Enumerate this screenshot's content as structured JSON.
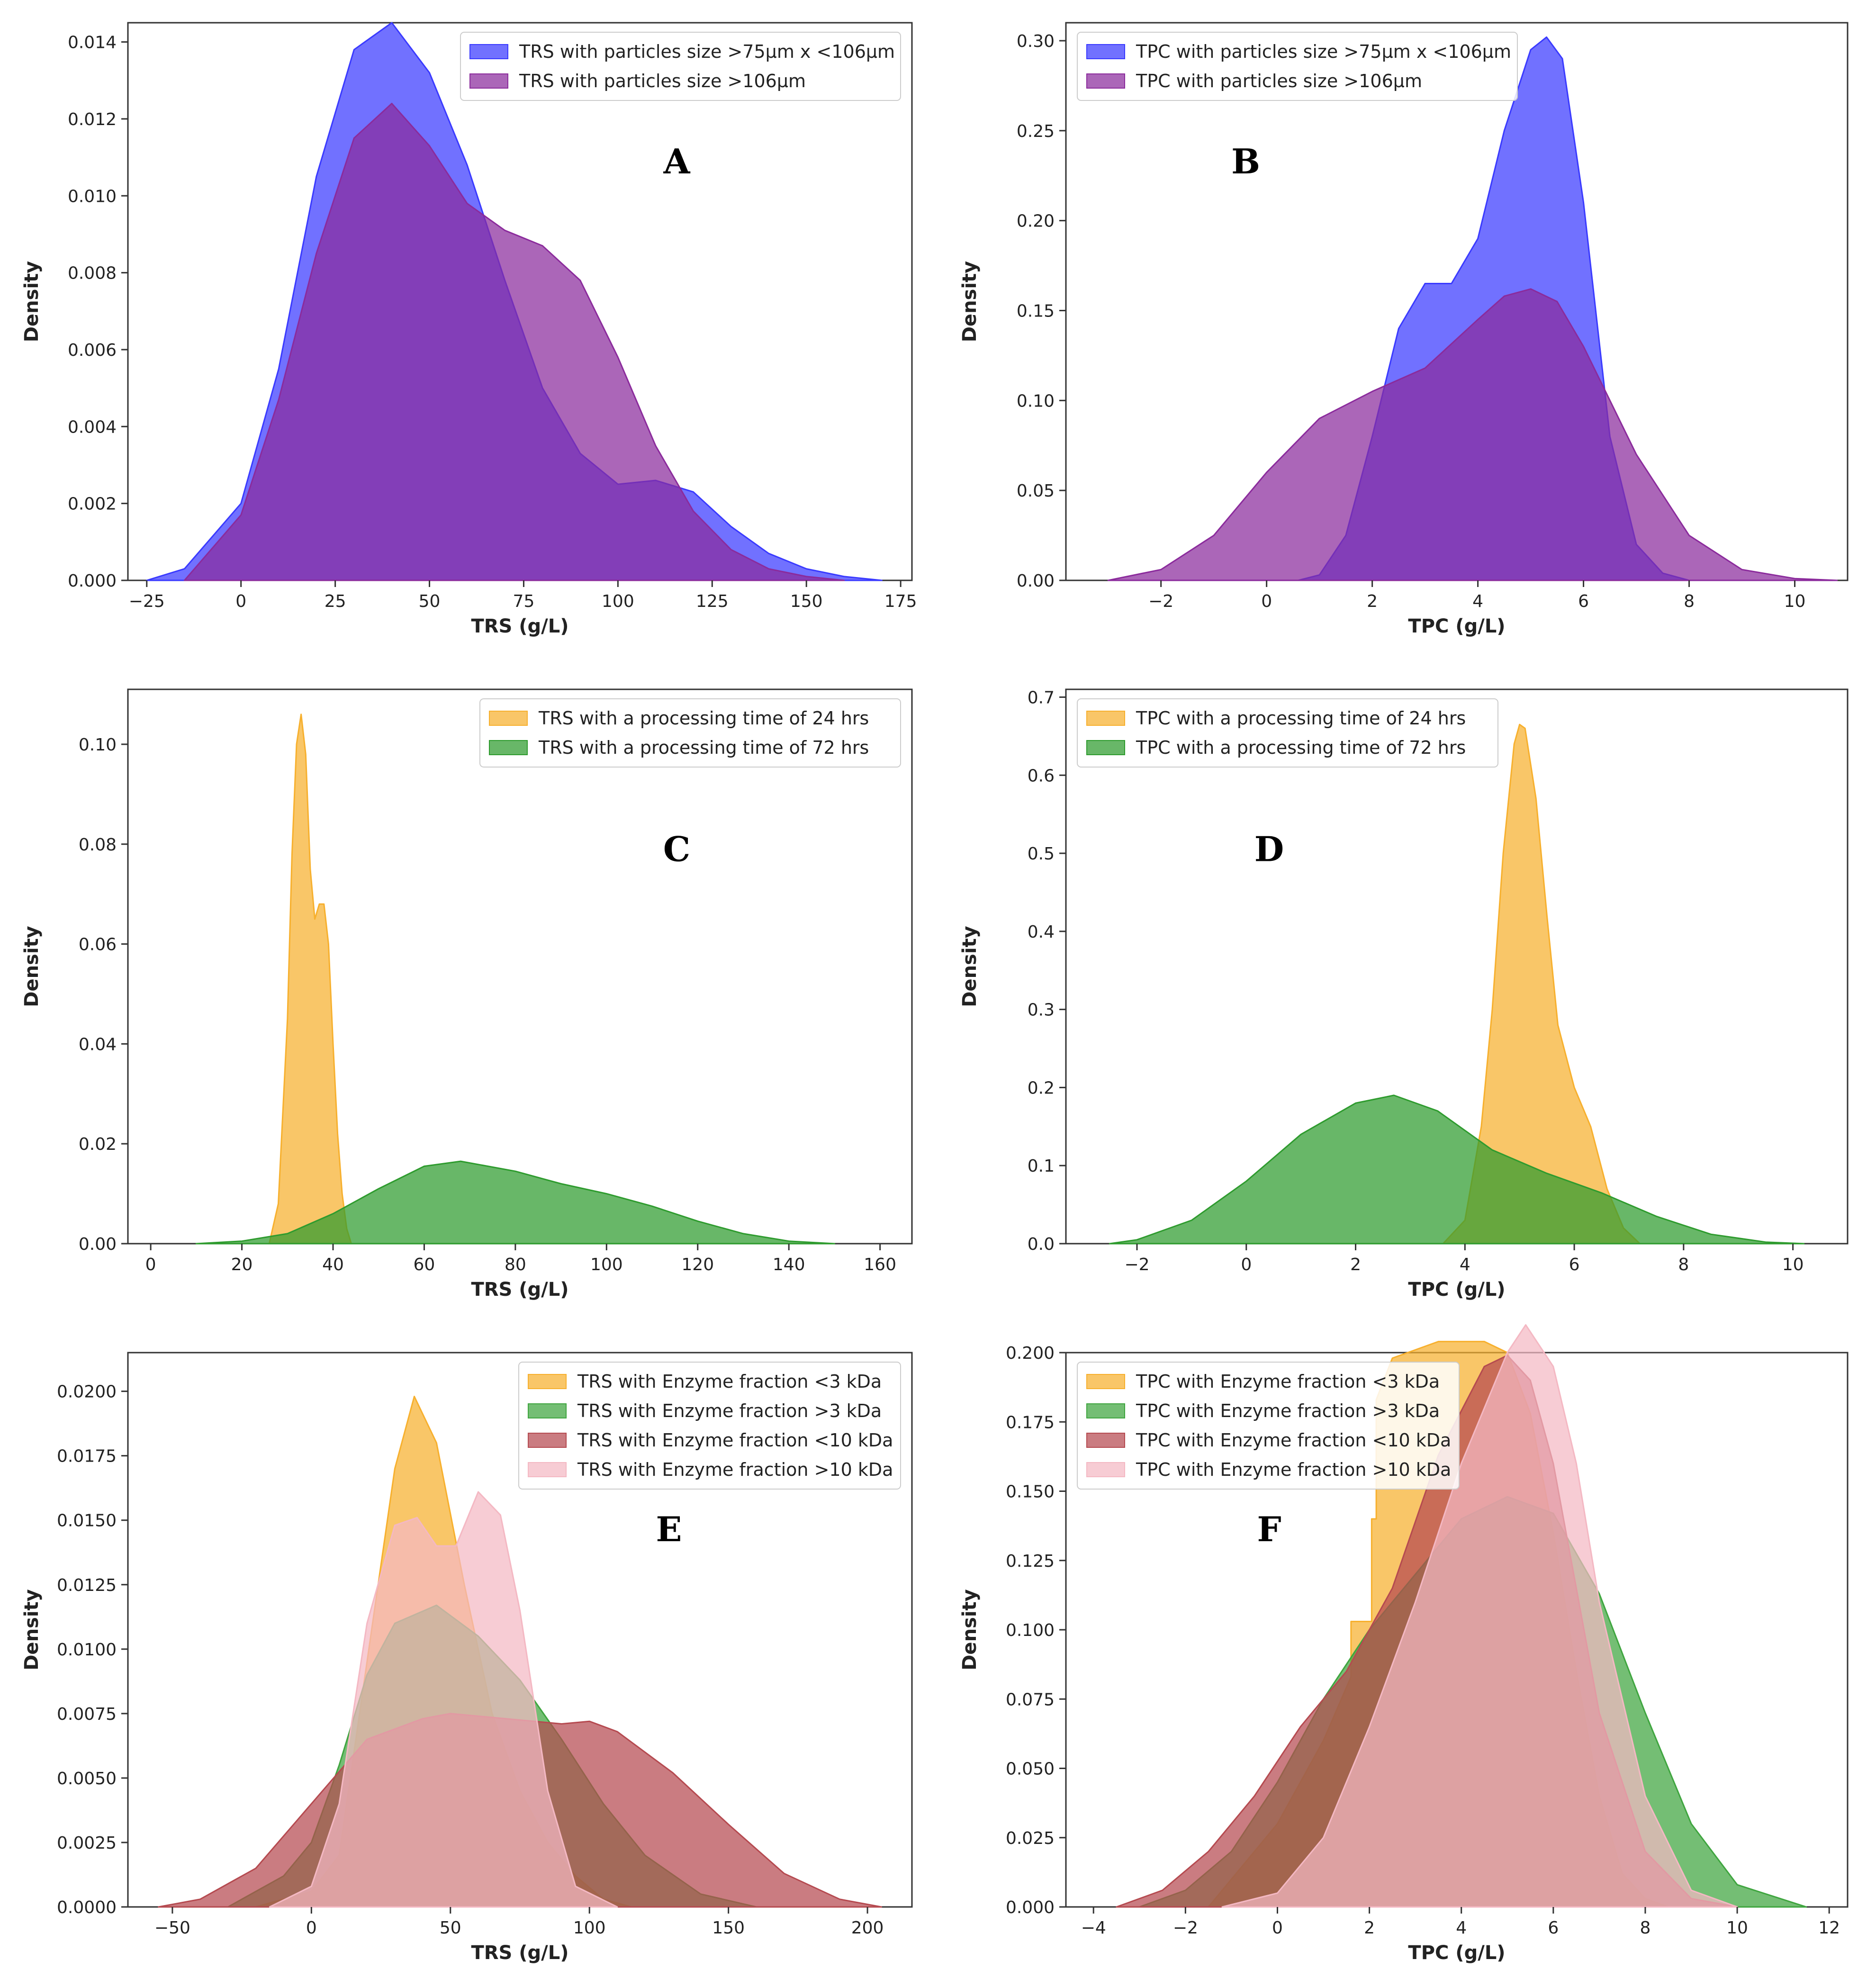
{
  "chart_data": [
    {
      "id": "A",
      "type": "area",
      "letter": "A",
      "xlabel": "TRS (g/L)",
      "ylabel": "Density",
      "xlim": [
        -30,
        178
      ],
      "ylim": [
        0,
        0.0145
      ],
      "xticks": [
        -25,
        0,
        25,
        50,
        75,
        100,
        125,
        150,
        175
      ],
      "xtick_labels": [
        "−25",
        "0",
        "25",
        "50",
        "75",
        "100",
        "125",
        "150",
        "175"
      ],
      "yticks": [
        0,
        0.002,
        0.004,
        0.006,
        0.008,
        0.01,
        0.012,
        0.014
      ],
      "ytick_labels": [
        "0.000",
        "0.002",
        "0.004",
        "0.006",
        "0.008",
        "0.010",
        "0.012",
        "0.014"
      ],
      "legend_position": "top-right",
      "series": [
        {
          "name": "TRS with particles size >75µm x <106µm",
          "color": "#3a3aff",
          "x": [
            -25,
            -15,
            0,
            10,
            20,
            30,
            40,
            50,
            60,
            70,
            80,
            90,
            100,
            110,
            120,
            130,
            140,
            150,
            160,
            170
          ],
          "y": [
            0.0,
            0.0003,
            0.002,
            0.0055,
            0.0105,
            0.0138,
            0.0145,
            0.0132,
            0.0108,
            0.0078,
            0.005,
            0.0033,
            0.0025,
            0.0026,
            0.0023,
            0.0014,
            0.0007,
            0.0003,
            0.0001,
            0.0
          ]
        },
        {
          "name": "TRS with particles size >106µm",
          "color": "#8b2b9c",
          "x": [
            -15,
            0,
            10,
            20,
            30,
            40,
            50,
            60,
            70,
            80,
            90,
            100,
            110,
            120,
            130,
            140,
            150,
            160
          ],
          "y": [
            0.0,
            0.0017,
            0.0047,
            0.0085,
            0.0115,
            0.0124,
            0.0113,
            0.0098,
            0.0091,
            0.0087,
            0.0078,
            0.0058,
            0.0035,
            0.0018,
            0.0008,
            0.0003,
            0.0001,
            0.0
          ]
        }
      ]
    },
    {
      "id": "B",
      "type": "area",
      "letter": "B",
      "xlabel": "TPC (g/L)",
      "ylabel": "Density",
      "xlim": [
        -3.8,
        11.0
      ],
      "ylim": [
        0,
        0.31
      ],
      "xticks": [
        -2,
        0,
        2,
        4,
        6,
        8,
        10
      ],
      "xtick_labels": [
        "−2",
        "0",
        "2",
        "4",
        "6",
        "8",
        "10"
      ],
      "yticks": [
        0,
        0.05,
        0.1,
        0.15,
        0.2,
        0.25,
        0.3
      ],
      "ytick_labels": [
        "0.00",
        "0.05",
        "0.10",
        "0.15",
        "0.20",
        "0.25",
        "0.30"
      ],
      "legend_position": "top-left",
      "series": [
        {
          "name": "TPC with particles size >75µm x <106µm",
          "color": "#3a3aff",
          "x": [
            0.6,
            1.0,
            1.5,
            2.0,
            2.5,
            3.0,
            3.5,
            4.0,
            4.5,
            5.0,
            5.3,
            5.6,
            6.0,
            6.5,
            7.0,
            7.5,
            8.0
          ],
          "y": [
            0.0,
            0.003,
            0.025,
            0.08,
            0.14,
            0.165,
            0.165,
            0.19,
            0.25,
            0.295,
            0.302,
            0.29,
            0.21,
            0.08,
            0.02,
            0.004,
            0.0
          ]
        },
        {
          "name": "TPC with particles size >106µm",
          "color": "#8b2b9c",
          "x": [
            -3,
            -2,
            -1,
            0,
            1,
            2,
            3,
            4,
            4.5,
            5,
            5.5,
            6,
            7,
            8,
            9,
            10,
            10.8
          ],
          "y": [
            0.0,
            0.006,
            0.025,
            0.06,
            0.09,
            0.105,
            0.118,
            0.145,
            0.158,
            0.162,
            0.155,
            0.13,
            0.07,
            0.025,
            0.006,
            0.001,
            0.0
          ]
        }
      ]
    },
    {
      "id": "C",
      "type": "area",
      "letter": "C",
      "xlabel": "TRS (g/L)",
      "ylabel": "Density",
      "xlim": [
        -5,
        167
      ],
      "ylim": [
        0,
        0.111
      ],
      "xticks": [
        0,
        20,
        40,
        60,
        80,
        100,
        120,
        140,
        160
      ],
      "xtick_labels": [
        "0",
        "20",
        "40",
        "60",
        "80",
        "100",
        "120",
        "140",
        "160"
      ],
      "yticks": [
        0,
        0.02,
        0.04,
        0.06,
        0.08,
        0.1
      ],
      "ytick_labels": [
        "0.00",
        "0.02",
        "0.04",
        "0.06",
        "0.08",
        "0.10"
      ],
      "legend_position": "top-right",
      "series": [
        {
          "name": "TRS with a processing time of 24 hrs",
          "color": "#f7b02e",
          "x": [
            26,
            28,
            30,
            31,
            32,
            33,
            34,
            35,
            36,
            37,
            38,
            39,
            40,
            41,
            42,
            43,
            44
          ],
          "y": [
            0.0,
            0.008,
            0.045,
            0.078,
            0.1,
            0.106,
            0.098,
            0.075,
            0.065,
            0.068,
            0.068,
            0.06,
            0.04,
            0.022,
            0.01,
            0.003,
            0.0
          ]
        },
        {
          "name": "TRS with a processing time of 72 hrs",
          "color": "#2e9b2e",
          "x": [
            10,
            20,
            30,
            40,
            50,
            60,
            68,
            80,
            90,
            100,
            110,
            120,
            130,
            140,
            150
          ],
          "y": [
            0.0,
            0.0005,
            0.002,
            0.006,
            0.011,
            0.0155,
            0.0165,
            0.0145,
            0.012,
            0.01,
            0.0075,
            0.0045,
            0.002,
            0.0005,
            0.0
          ]
        }
      ]
    },
    {
      "id": "D",
      "type": "area",
      "letter": "D",
      "xlabel": "TPC (g/L)",
      "ylabel": "Density",
      "xlim": [
        -3.3,
        11.0
      ],
      "ylim": [
        0,
        0.71
      ],
      "xticks": [
        -2,
        0,
        2,
        4,
        6,
        8,
        10
      ],
      "xtick_labels": [
        "−2",
        "0",
        "2",
        "4",
        "6",
        "8",
        "10"
      ],
      "yticks": [
        0,
        0.1,
        0.2,
        0.3,
        0.4,
        0.5,
        0.6,
        0.7
      ],
      "ytick_labels": [
        "0.0",
        "0.1",
        "0.2",
        "0.3",
        "0.4",
        "0.5",
        "0.6",
        "0.7"
      ],
      "legend_position": "top-left",
      "series": [
        {
          "name": "TPC with a processing time of 24 hrs",
          "color": "#f7b02e",
          "x": [
            3.6,
            4.0,
            4.3,
            4.5,
            4.7,
            4.9,
            5.0,
            5.1,
            5.3,
            5.5,
            5.7,
            6.0,
            6.3,
            6.6,
            6.9,
            7.2
          ],
          "y": [
            0.0,
            0.03,
            0.15,
            0.3,
            0.5,
            0.64,
            0.665,
            0.66,
            0.57,
            0.42,
            0.28,
            0.2,
            0.15,
            0.07,
            0.02,
            0.0
          ]
        },
        {
          "name": "TPC with a processing time of 72 hrs",
          "color": "#2e9b2e",
          "x": [
            -2.5,
            -2,
            -1,
            0,
            1,
            2,
            2.7,
            3.5,
            4.5,
            5.5,
            6.5,
            7.5,
            8.5,
            9.5,
            10.2
          ],
          "y": [
            0.0,
            0.005,
            0.03,
            0.08,
            0.14,
            0.18,
            0.19,
            0.17,
            0.12,
            0.09,
            0.065,
            0.035,
            0.012,
            0.002,
            0.0
          ]
        }
      ]
    },
    {
      "id": "E",
      "type": "area",
      "letter": "E",
      "xlabel": "TRS (g/L)",
      "ylabel": "Density",
      "xlim": [
        -66,
        216
      ],
      "ylim": [
        0,
        0.0215
      ],
      "xticks": [
        -50,
        0,
        50,
        100,
        150,
        200
      ],
      "xtick_labels": [
        "−50",
        "0",
        "50",
        "100",
        "150",
        "200"
      ],
      "yticks": [
        0,
        0.0025,
        0.005,
        0.0075,
        0.01,
        0.0125,
        0.015,
        0.0175,
        0.02
      ],
      "ytick_labels": [
        "0.0000",
        "0.0025",
        "0.0050",
        "0.0075",
        "0.0100",
        "0.0125",
        "0.0150",
        "0.0175",
        "0.0200"
      ],
      "legend_position": "top-right",
      "series": [
        {
          "name": "TRS with Enzyme fraction <3 kDa",
          "color": "#f7b02e",
          "x": [
            -20,
            0,
            10,
            20,
            30,
            37,
            45,
            55,
            65,
            75,
            85,
            95,
            105,
            115
          ],
          "y": [
            0.0,
            0.0006,
            0.002,
            0.0095,
            0.017,
            0.0198,
            0.018,
            0.0125,
            0.0075,
            0.0045,
            0.0025,
            0.0012,
            0.0003,
            0.0
          ]
        },
        {
          "name": "TRS with Enzyme fraction >3 kDa",
          "color": "#3fa53f",
          "x": [
            -30,
            -10,
            0,
            10,
            20,
            30,
            45,
            60,
            75,
            90,
            105,
            120,
            140,
            160
          ],
          "y": [
            0.0,
            0.0012,
            0.0025,
            0.0055,
            0.009,
            0.011,
            0.0117,
            0.0105,
            0.0088,
            0.0065,
            0.004,
            0.002,
            0.0005,
            0.0
          ]
        },
        {
          "name": "TRS with Enzyme fraction <10 kDa",
          "color": "#b54a50",
          "x": [
            -55,
            -40,
            -20,
            0,
            20,
            40,
            50,
            70,
            90,
            100,
            110,
            130,
            150,
            170,
            190,
            205
          ],
          "y": [
            0.0,
            0.0003,
            0.0015,
            0.004,
            0.0065,
            0.0073,
            0.0075,
            0.0073,
            0.0071,
            0.0072,
            0.0068,
            0.0052,
            0.0032,
            0.0013,
            0.0003,
            0.0
          ]
        },
        {
          "name": "TRS with Enzyme fraction >10 kDa",
          "color": "#f4b8c3",
          "x": [
            -15,
            0,
            10,
            20,
            30,
            38,
            45,
            52,
            60,
            68,
            75,
            85,
            95,
            110
          ],
          "y": [
            0.0,
            0.0008,
            0.004,
            0.011,
            0.0148,
            0.0151,
            0.014,
            0.014,
            0.0161,
            0.0152,
            0.0115,
            0.0045,
            0.0008,
            0.0
          ]
        }
      ]
    },
    {
      "id": "F",
      "type": "area",
      "letter": "F",
      "xlabel": "TPC (g/L)",
      "ylabel": "Density",
      "xlim": [
        -4.6,
        12.4
      ],
      "ylim": [
        0,
        0.2
      ],
      "xticks": [
        -4,
        -2,
        0,
        2,
        4,
        6,
        8,
        10,
        12
      ],
      "xtick_labels": [
        "−4",
        "−2",
        "0",
        "2",
        "4",
        "6",
        "8",
        "10",
        "12"
      ],
      "yticks": [
        0,
        0.025,
        0.05,
        0.075,
        0.1,
        0.125,
        0.15,
        0.175,
        0.2
      ],
      "ytick_labels": [
        "0.000",
        "0.025",
        "0.050",
        "0.075",
        "0.100",
        "0.125",
        "0.150",
        "0.175",
        "0.200"
      ],
      "legend_position": "top-left",
      "series": [
        {
          "name": "TPC with Enzyme fraction <3 kDa",
          "color": "#f7b02e",
          "x": [
            -1.5,
            0,
            1,
            1.6,
            1.6,
            2.05,
            2.05,
            2.15,
            2.15,
            2.5,
            3.5,
            4.5,
            5,
            5.5,
            6,
            6.5,
            7,
            7.5,
            8,
            8.5
          ],
          "y": [
            0.0,
            0.03,
            0.06,
            0.083,
            0.103,
            0.103,
            0.14,
            0.14,
            0.183,
            0.198,
            0.204,
            0.204,
            0.2,
            0.178,
            0.135,
            0.085,
            0.04,
            0.012,
            0.003,
            0.0
          ]
        },
        {
          "name": "TPC with Enzyme fraction >3 kDa",
          "color": "#3fa53f",
          "x": [
            -3,
            -2,
            -1,
            0,
            1,
            2,
            3,
            4,
            5,
            6,
            7,
            8,
            9,
            10,
            11.5
          ],
          "y": [
            0.0,
            0.006,
            0.02,
            0.045,
            0.075,
            0.1,
            0.12,
            0.14,
            0.148,
            0.142,
            0.113,
            0.07,
            0.03,
            0.008,
            0.0
          ]
        },
        {
          "name": "TPC with Enzyme fraction <10 kDa",
          "color": "#b54a50",
          "x": [
            -3.5,
            -2.5,
            -1.5,
            -0.5,
            0.5,
            1.5,
            2.5,
            3.5,
            4.5,
            5,
            5.5,
            6,
            6.5,
            7,
            8,
            9,
            10
          ],
          "y": [
            0.0,
            0.006,
            0.02,
            0.04,
            0.065,
            0.085,
            0.115,
            0.163,
            0.195,
            0.199,
            0.19,
            0.16,
            0.115,
            0.07,
            0.02,
            0.003,
            0.0
          ]
        },
        {
          "name": "TPC with Enzyme fraction >10 kDa",
          "color": "#f4b8c3",
          "x": [
            -1.2,
            0,
            1,
            2,
            3,
            4,
            5,
            5.4,
            6,
            6.5,
            7,
            8,
            9,
            10
          ],
          "y": [
            0.0,
            0.005,
            0.025,
            0.065,
            0.11,
            0.16,
            0.2,
            0.21,
            0.195,
            0.16,
            0.11,
            0.04,
            0.006,
            0.0
          ]
        }
      ]
    }
  ]
}
